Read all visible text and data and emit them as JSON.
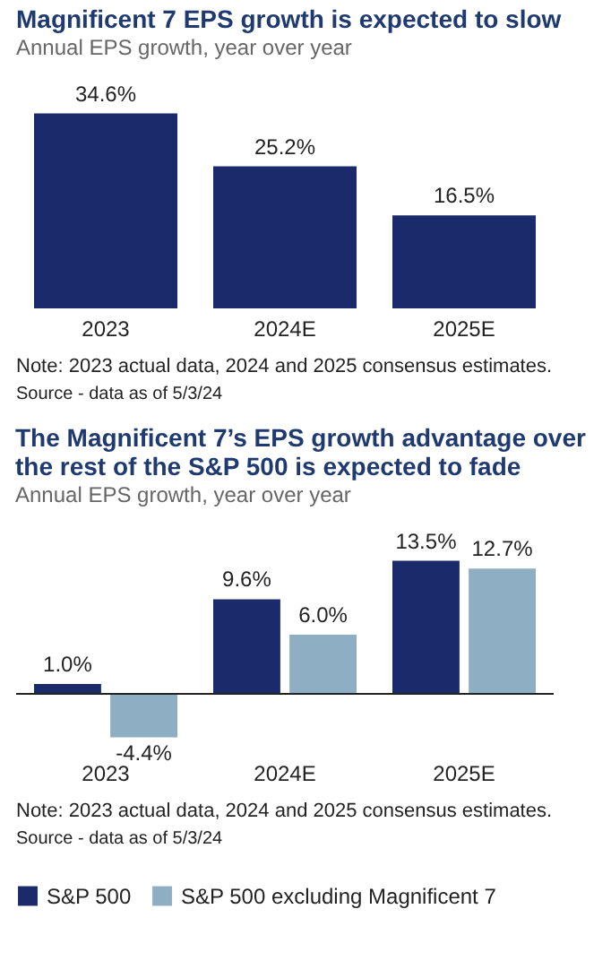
{
  "chart_data": [
    {
      "type": "bar",
      "title": "Magnificent 7 EPS growth is expected to slow",
      "subtitle": "Annual EPS growth, year over year",
      "categories": [
        "2023",
        "2024E",
        "2025E"
      ],
      "series": [
        {
          "color": "#1b2a6b",
          "values": [
            34.6,
            25.2,
            16.5
          ],
          "value_labels": [
            "34.6%",
            "25.2%",
            "16.5%"
          ]
        }
      ],
      "annotations": [
        "Note: 2023 actual data, 2024 and 2025 consensus estimates.",
        "Source - data as of 5/3/24"
      ]
    },
    {
      "type": "bar",
      "title": "The Magnificent 7’s EPS growth advantage over the rest of the S&P 500 is expected to fade",
      "subtitle": "Annual EPS growth, year over year",
      "categories": [
        "2023",
        "2024E",
        "2025E"
      ],
      "legend": "bottom",
      "series": [
        {
          "name": "S&P 500",
          "color": "#1b2a6b",
          "values": [
            1.0,
            9.6,
            13.5
          ],
          "value_labels": [
            "1.0%",
            "9.6%",
            "13.5%"
          ]
        },
        {
          "name": "S&P 500 excluding Magnificent 7",
          "color": "#8eafc3",
          "values": [
            -4.4,
            6.0,
            12.7
          ],
          "value_labels": [
            "-4.4%",
            "6.0%",
            "12.7%"
          ]
        }
      ],
      "annotations": [
        "Note: 2023 actual data, 2024 and 2025 consensus estimates.",
        "Source - data as of 5/3/24"
      ]
    }
  ]
}
